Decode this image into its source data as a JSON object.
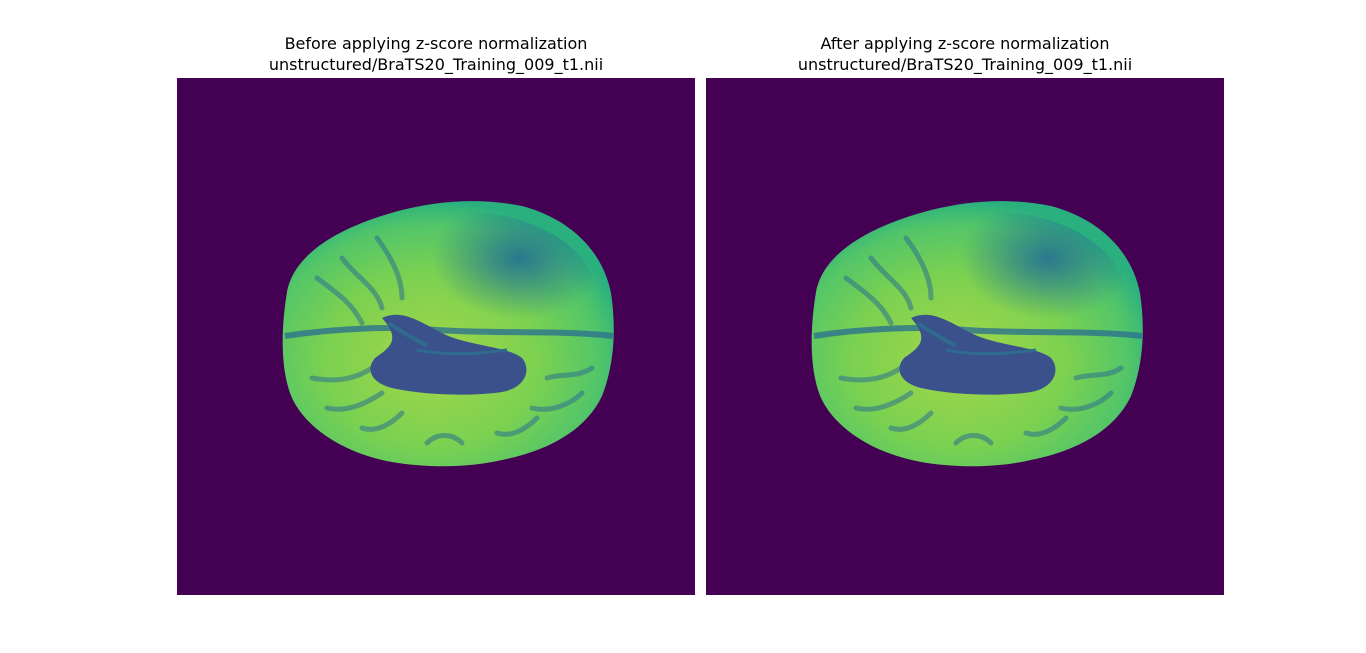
{
  "figure": {
    "colormap": "viridis",
    "background_color": "#440154",
    "panels": [
      {
        "title_line1": "Before applying z-score normalization",
        "title_line2": "unstructured/BraTS20_Training_009_t1.nii",
        "image_description_icon": "mri-axial-brain-slice"
      },
      {
        "title_line1": "After applying z-score normalization",
        "title_line2": "unstructured/BraTS20_Training_009_t1.nii",
        "image_description_icon": "mri-axial-brain-slice"
      }
    ]
  }
}
